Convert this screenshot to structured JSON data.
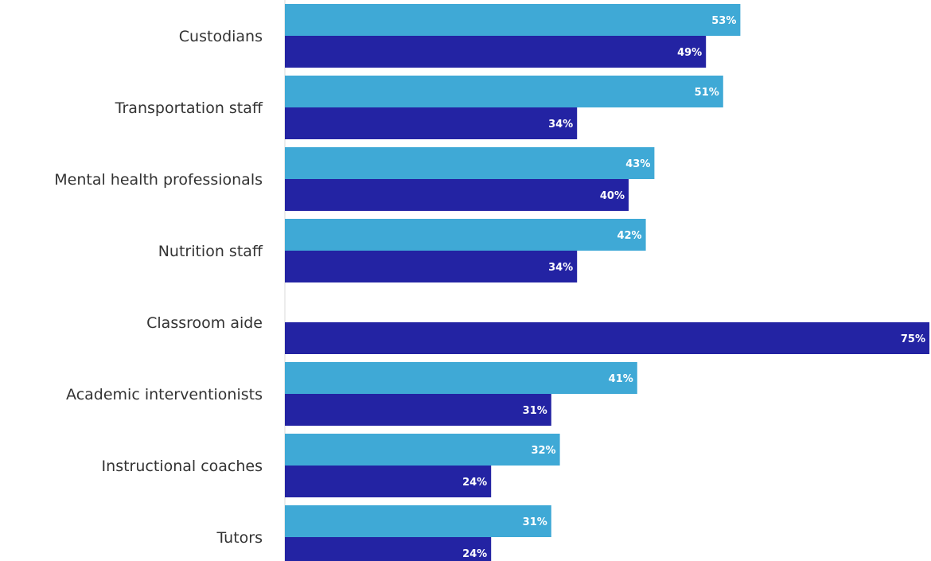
{
  "chart_data": {
    "type": "bar",
    "orientation": "horizontal",
    "categories": [
      "Custodians",
      "Transportation staff",
      "Mental health professionals",
      "Nutrition staff",
      "Classroom aide",
      "Academic interventionists",
      "Instructional coaches",
      "Tutors"
    ],
    "series": [
      {
        "color": "#3fa9d6",
        "values": [
          53,
          51,
          43,
          42,
          null,
          41,
          32,
          31
        ]
      },
      {
        "color": "#2323a3",
        "values": [
          49,
          34,
          40,
          34,
          75,
          31,
          24,
          24
        ]
      }
    ],
    "value_suffix": "%",
    "xlim": [
      0,
      75
    ],
    "grid": false,
    "legend": "none"
  }
}
